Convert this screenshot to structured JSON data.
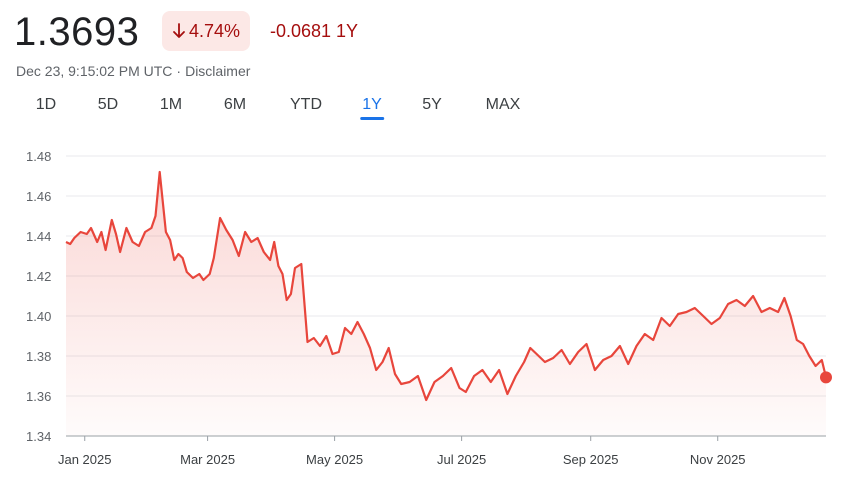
{
  "header": {
    "price": "1.3693",
    "percent_change": "4.74%",
    "direction_icon": "arrow-down-icon",
    "absolute_change": "-0.0681 1Y",
    "timestamp": "Dec 23, 9:15:02 PM UTC",
    "separator": "·",
    "disclaimer": "Disclaimer"
  },
  "tabs": [
    {
      "label": "1D",
      "active": false
    },
    {
      "label": "5D",
      "active": false
    },
    {
      "label": "1M",
      "active": false
    },
    {
      "label": "6M",
      "active": false
    },
    {
      "label": "YTD",
      "active": false
    },
    {
      "label": "1Y",
      "active": true
    },
    {
      "label": "5Y",
      "active": false
    },
    {
      "label": "MAX",
      "active": false
    }
  ],
  "colors": {
    "line": "#e8463c",
    "negative_text": "#a50e0e",
    "negative_bg": "#fce8e6",
    "active_tab": "#1a73e8",
    "grid": "#e8eaed"
  },
  "chart_data": {
    "type": "area",
    "xlabel": "",
    "ylabel": "",
    "ylim": [
      1.34,
      1.48
    ],
    "yticks": [
      1.34,
      1.36,
      1.38,
      1.4,
      1.42,
      1.44,
      1.46,
      1.48
    ],
    "ytick_labels": [
      "1.34",
      "1.36",
      "1.38",
      "1.40",
      "1.42",
      "1.44",
      "1.46",
      "1.48"
    ],
    "xlim": [
      "2024-12-23",
      "2025-12-23"
    ],
    "xticks": [
      "2025-01-01",
      "2025-03-01",
      "2025-05-01",
      "2025-07-01",
      "2025-09-01",
      "2025-11-01"
    ],
    "xtick_labels": [
      "Jan 2025",
      "Mar 2025",
      "May 2025",
      "Jul 2025",
      "Sep 2025",
      "Nov 2025"
    ],
    "grid": "horizontal",
    "end_marker": true,
    "series": [
      {
        "x": [
          "2024-12-23",
          "2024-12-25",
          "2024-12-27",
          "2024-12-30",
          "2025-01-02",
          "2025-01-04",
          "2025-01-07",
          "2025-01-09",
          "2025-01-11",
          "2025-01-14",
          "2025-01-16",
          "2025-01-18",
          "2025-01-21",
          "2025-01-24",
          "2025-01-27",
          "2025-01-30",
          "2025-02-02",
          "2025-02-04",
          "2025-02-06",
          "2025-02-09",
          "2025-02-11",
          "2025-02-13",
          "2025-02-15",
          "2025-02-17",
          "2025-02-19",
          "2025-02-22",
          "2025-02-25",
          "2025-02-27",
          "2025-03-02",
          "2025-03-04",
          "2025-03-07",
          "2025-03-10",
          "2025-03-13",
          "2025-03-16",
          "2025-03-19",
          "2025-03-22",
          "2025-03-25",
          "2025-03-28",
          "2025-03-31",
          "2025-04-02",
          "2025-04-04",
          "2025-04-06",
          "2025-04-08",
          "2025-04-10",
          "2025-04-12",
          "2025-04-15",
          "2025-04-18",
          "2025-04-21",
          "2025-04-24",
          "2025-04-27",
          "2025-04-30",
          "2025-05-03",
          "2025-05-06",
          "2025-05-09",
          "2025-05-12",
          "2025-05-15",
          "2025-05-18",
          "2025-05-21",
          "2025-05-24",
          "2025-05-27",
          "2025-05-30",
          "2025-06-02",
          "2025-06-06",
          "2025-06-10",
          "2025-06-14",
          "2025-06-18",
          "2025-06-22",
          "2025-06-26",
          "2025-06-30",
          "2025-07-03",
          "2025-07-07",
          "2025-07-11",
          "2025-07-15",
          "2025-07-19",
          "2025-07-23",
          "2025-07-27",
          "2025-07-31",
          "2025-08-03",
          "2025-08-06",
          "2025-08-10",
          "2025-08-14",
          "2025-08-18",
          "2025-08-22",
          "2025-08-26",
          "2025-08-30",
          "2025-09-03",
          "2025-09-07",
          "2025-09-11",
          "2025-09-15",
          "2025-09-19",
          "2025-09-23",
          "2025-09-27",
          "2025-10-01",
          "2025-10-05",
          "2025-10-09",
          "2025-10-13",
          "2025-10-17",
          "2025-10-21",
          "2025-10-25",
          "2025-10-29",
          "2025-11-02",
          "2025-11-06",
          "2025-11-10",
          "2025-11-14",
          "2025-11-18",
          "2025-11-22",
          "2025-11-26",
          "2025-11-30",
          "2025-12-03",
          "2025-12-06",
          "2025-12-09",
          "2025-12-12",
          "2025-12-15",
          "2025-12-18",
          "2025-12-21",
          "2025-12-23"
        ],
        "values": [
          1.437,
          1.436,
          1.439,
          1.442,
          1.441,
          1.444,
          1.437,
          1.442,
          1.433,
          1.448,
          1.441,
          1.432,
          1.444,
          1.437,
          1.435,
          1.442,
          1.444,
          1.45,
          1.472,
          1.442,
          1.438,
          1.428,
          1.431,
          1.429,
          1.422,
          1.419,
          1.421,
          1.418,
          1.421,
          1.429,
          1.449,
          1.443,
          1.438,
          1.43,
          1.442,
          1.437,
          1.439,
          1.432,
          1.428,
          1.437,
          1.425,
          1.421,
          1.408,
          1.411,
          1.424,
          1.426,
          1.387,
          1.389,
          1.385,
          1.39,
          1.381,
          1.382,
          1.394,
          1.391,
          1.397,
          1.391,
          1.384,
          1.373,
          1.377,
          1.384,
          1.371,
          1.366,
          1.367,
          1.37,
          1.358,
          1.367,
          1.37,
          1.374,
          1.364,
          1.362,
          1.37,
          1.373,
          1.367,
          1.373,
          1.361,
          1.37,
          1.377,
          1.384,
          1.381,
          1.377,
          1.379,
          1.383,
          1.376,
          1.382,
          1.386,
          1.373,
          1.378,
          1.38,
          1.385,
          1.376,
          1.385,
          1.391,
          1.388,
          1.399,
          1.395,
          1.401,
          1.402,
          1.404,
          1.4,
          1.396,
          1.399,
          1.406,
          1.408,
          1.405,
          1.41,
          1.402,
          1.404,
          1.402,
          1.409,
          1.4,
          1.388,
          1.386,
          1.38,
          1.375,
          1.378,
          1.3693
        ]
      }
    ]
  }
}
